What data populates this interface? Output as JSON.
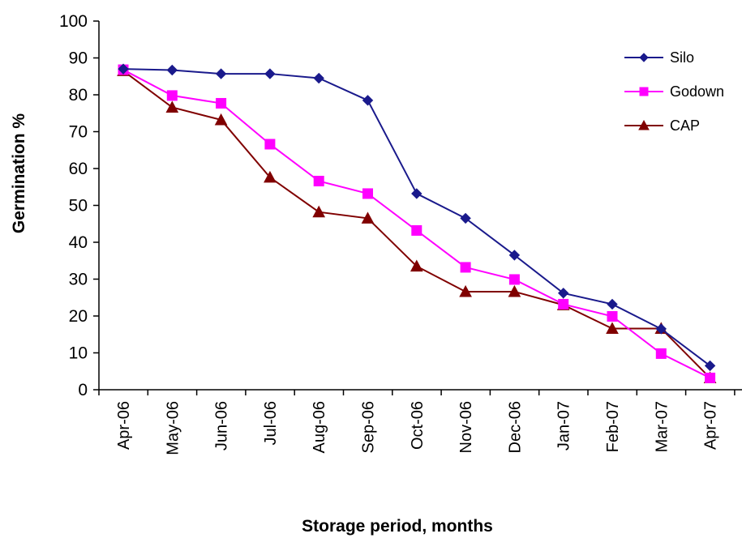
{
  "chart_data": {
    "type": "line",
    "title": "",
    "xlabel": "Storage period, months",
    "ylabel": "Germination %",
    "ylim": [
      0,
      100
    ],
    "yticks": [
      0,
      10,
      20,
      30,
      40,
      50,
      60,
      70,
      80,
      90,
      100
    ],
    "grid": false,
    "legend_position": "top-right",
    "categories": [
      "Apr-06",
      "May-06",
      "Jun-06",
      "Jul-06",
      "Aug-06",
      "Sep-06",
      "Oct-06",
      "Nov-06",
      "Dec-06",
      "Jan-07",
      "Feb-07",
      "Mar-07",
      "Apr-07"
    ],
    "series": [
      {
        "name": "Silo",
        "color": "#1a1a8c",
        "marker": "diamond",
        "values": [
          87,
          86.7,
          85.7,
          85.7,
          84.5,
          78.5,
          53.2,
          46.5,
          36.5,
          26.2,
          23.2,
          16.5,
          6.5
        ]
      },
      {
        "name": "Godown",
        "color": "#ff00ff",
        "marker": "square",
        "values": [
          86.8,
          79.8,
          77.7,
          66.6,
          56.6,
          53.2,
          43.2,
          33.2,
          29.9,
          23.2,
          19.9,
          9.8,
          3.2
        ]
      },
      {
        "name": "CAP",
        "color": "#800000",
        "marker": "triangle",
        "values": [
          86.5,
          76.6,
          73.2,
          57.6,
          48.2,
          46.5,
          33.5,
          26.6,
          26.6,
          23.0,
          16.6,
          16.6,
          3.2
        ]
      }
    ]
  }
}
